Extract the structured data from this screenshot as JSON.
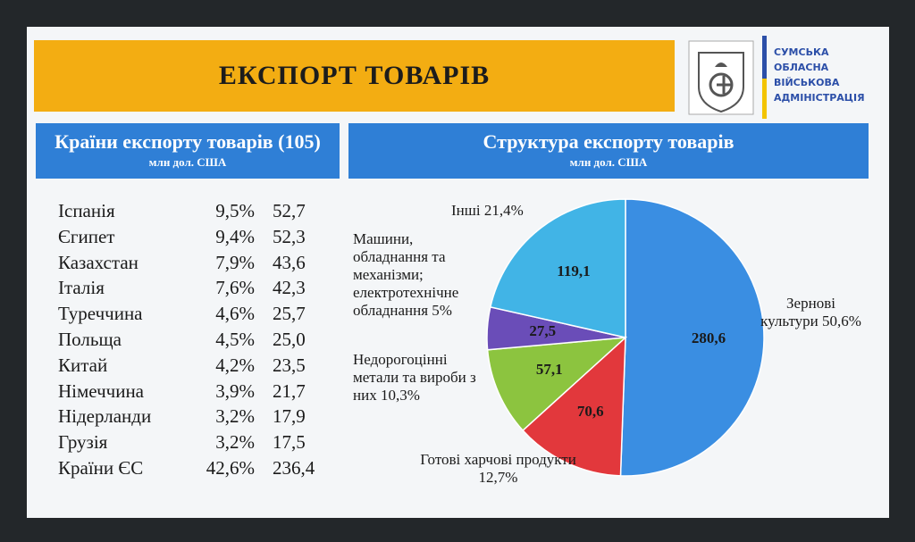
{
  "header": {
    "title": "ЕКСПОРТ ТОВАРІВ",
    "org": [
      "СУМСЬКА",
      "ОБЛАСНА",
      "ВІЙСЬКОВА",
      "АДМІНІСТРАЦІЯ"
    ]
  },
  "table": {
    "title": "Країни експорту товарів (105)",
    "subtitle": "млн дол. США",
    "rows": [
      [
        "Іспанія",
        "9,5%",
        "52,7"
      ],
      [
        "Єгипет",
        "9,4%",
        "52,3"
      ],
      [
        "Казахстан",
        "7,9%",
        "43,6"
      ],
      [
        "Італія",
        "7,6%",
        "42,3"
      ],
      [
        "Туреччина",
        "4,6%",
        "25,7"
      ],
      [
        "Польща",
        "4,5%",
        "25,0"
      ],
      [
        "Китай",
        "4,2%",
        "23,5"
      ],
      [
        "Німеччина",
        "3,9%",
        "21,7"
      ],
      [
        "Нідерланди",
        "3,2%",
        "17,9"
      ],
      [
        "Грузія",
        "3,2%",
        "17,5"
      ],
      [
        "Країни ЄС",
        "42,6%",
        "236,4"
      ]
    ]
  },
  "chart_data": {
    "type": "pie",
    "title": "Структура експорту товарів",
    "subtitle": "млн дол. США",
    "categories": [
      "Зернові культури 50,6%",
      "Готові харчові продукти 12,7%",
      "Недорогоцінні метали та вироби з них 10,3%",
      "Машини, обладнання та механізми; електротехнічне обладнання 5%",
      "Інші 21,4%"
    ],
    "values": [
      280.6,
      70.6,
      57.1,
      27.5,
      119.1
    ],
    "value_labels": [
      "280,6",
      "70,6",
      "57,1",
      "27,5",
      "119,1"
    ],
    "colors": [
      "#3a8ee2",
      "#e2383c",
      "#8cc43f",
      "#6a4db8",
      "#41b4e6"
    ]
  }
}
